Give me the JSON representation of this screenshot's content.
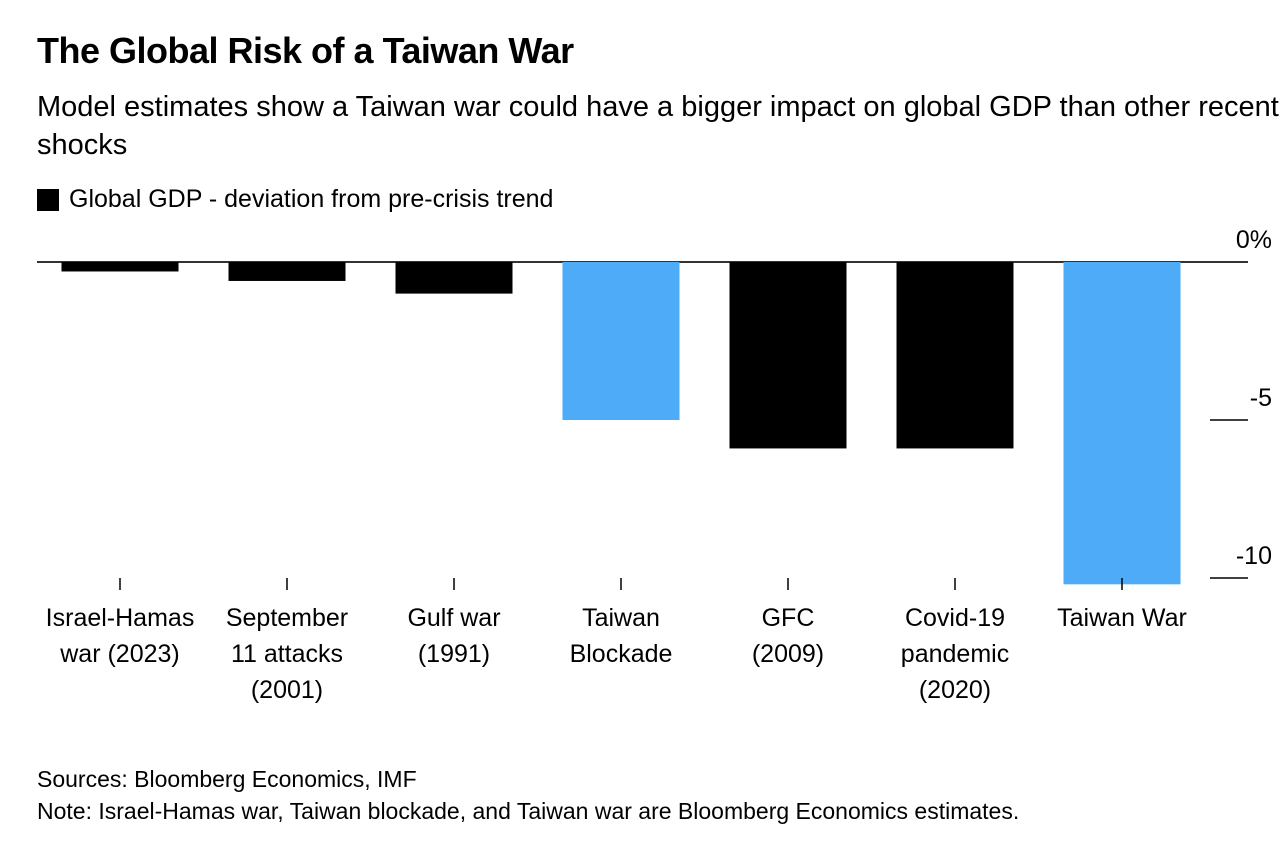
{
  "chart_data": {
    "type": "bar",
    "title": "The Global Risk of a Taiwan War",
    "subtitle": "Model estimates show a Taiwan war could have a bigger impact on global GDP than other recent shocks",
    "legend": "Global GDP - deviation from pre-crisis trend",
    "categories": [
      [
        "Israel-Hamas",
        "war (2023)"
      ],
      [
        "September",
        "11 attacks",
        "(2001)"
      ],
      [
        "Gulf war",
        "(1991)"
      ],
      [
        "Taiwan",
        "Blockade"
      ],
      [
        "GFC",
        "(2009)"
      ],
      [
        "Covid-19",
        "pandemic",
        "(2020)"
      ],
      [
        "Taiwan War"
      ]
    ],
    "values": [
      -0.3,
      -0.6,
      -1.0,
      -5.0,
      -5.9,
      -5.9,
      -10.2
    ],
    "colors": [
      "#000000",
      "#000000",
      "#000000",
      "#4eabf7",
      "#000000",
      "#000000",
      "#4eabf7"
    ],
    "yticks": [
      {
        "v": 0,
        "label": "0%"
      },
      {
        "v": -5,
        "label": "-5"
      },
      {
        "v": -10,
        "label": "-10"
      }
    ],
    "ylim": [
      -10.2,
      0
    ],
    "ylabel": "",
    "xlabel": "",
    "grid": false,
    "legend_position": "top-left"
  },
  "footer": {
    "sources": "Sources: Bloomberg Economics, IMF",
    "note": "Note: Israel-Hamas war, Taiwan blockade, and Taiwan war are Bloomberg Economics estimates."
  }
}
